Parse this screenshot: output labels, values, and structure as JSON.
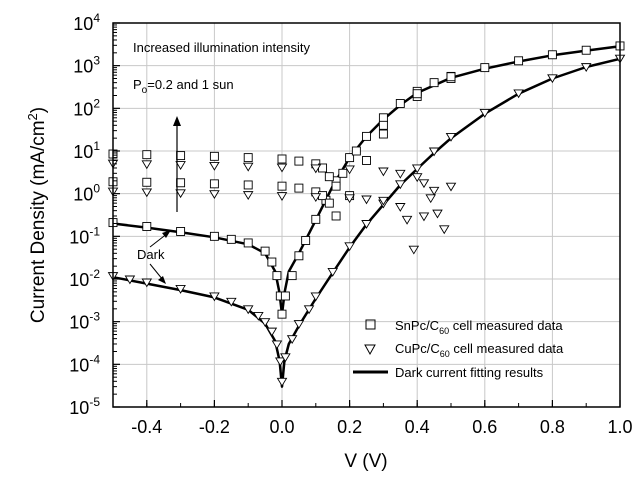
{
  "chart_data": {
    "type": "scatter",
    "x_axis": {
      "label": "V (V)",
      "min": -0.5,
      "max": 1.0,
      "scale": "linear",
      "ticks": [
        -0.4,
        -0.2,
        0.0,
        0.2,
        0.4,
        0.6,
        0.8,
        1.0
      ],
      "tick_labels": [
        "-0.4",
        "-0.2",
        "0.0",
        "0.2",
        "0.4",
        "0.6",
        "0.8",
        "1.0"
      ]
    },
    "y_axis": {
      "label": "Current Density (mA/cm²)",
      "label_main": "Current Density (mA/cm",
      "label_sup": "2",
      "label_end": ")",
      "min": 1e-05,
      "max": 10000.0,
      "scale": "log",
      "ticks": [
        10000.0,
        1000.0,
        100.0,
        10.0,
        1,
        0.1,
        0.01,
        0.001,
        0.0001,
        1e-05
      ],
      "tick_labels": [
        {
          "base": "10",
          "exp": "4"
        },
        {
          "base": "10",
          "exp": "3"
        },
        {
          "base": "10",
          "exp": "2"
        },
        {
          "base": "10",
          "exp": "1"
        },
        {
          "base": "10",
          "exp": "0"
        },
        {
          "base": "10",
          "exp": "-1"
        },
        {
          "base": "10",
          "exp": "-2"
        },
        {
          "base": "10",
          "exp": "-3"
        },
        {
          "base": "10",
          "exp": "-4"
        },
        {
          "base": "10",
          "exp": "-5"
        }
      ]
    },
    "grid": true,
    "legend_placement": "bottom-right",
    "legend": [
      {
        "marker": "square",
        "text_pre": "SnPc/C",
        "text_sub": "60",
        "text_post": " cell measured data"
      },
      {
        "marker": "triangle-down",
        "text_pre": "CuPc/C",
        "text_sub": "60",
        "text_post": " cell measured data"
      },
      {
        "marker": "line",
        "text_pre": "Dark current fitting results",
        "text_sub": "",
        "text_post": ""
      }
    ],
    "annotations": {
      "illumination": "Increased illumination intensity",
      "power_pre": "P",
      "power_sub": "o",
      "power_post": "=0.2 and 1 sun",
      "dark": "Dark"
    },
    "series": [
      {
        "name": "SnPc/C60 dark",
        "marker": "square",
        "points": [
          [
            -0.5,
            0.21
          ],
          [
            -0.4,
            0.17
          ],
          [
            -0.3,
            0.13
          ],
          [
            -0.2,
            0.1
          ],
          [
            -0.15,
            0.085
          ],
          [
            -0.1,
            0.07
          ],
          [
            -0.05,
            0.045
          ],
          [
            -0.03,
            0.025
          ],
          [
            -0.015,
            0.012
          ],
          [
            -0.005,
            0.004
          ],
          [
            0.0,
            0.0015
          ],
          [
            0.01,
            0.004
          ],
          [
            0.03,
            0.012
          ],
          [
            0.05,
            0.035
          ],
          [
            0.07,
            0.08
          ],
          [
            0.1,
            0.25
          ],
          [
            0.13,
            0.7
          ],
          [
            0.16,
            2
          ],
          [
            0.2,
            7
          ],
          [
            0.25,
            22
          ],
          [
            0.3,
            60
          ],
          [
            0.35,
            130
          ],
          [
            0.4,
            250
          ],
          [
            0.45,
            400
          ],
          [
            0.5,
            560
          ],
          [
            0.6,
            900
          ],
          [
            0.7,
            1300
          ],
          [
            0.8,
            1800
          ],
          [
            0.9,
            2300
          ],
          [
            1.0,
            2900
          ]
        ]
      },
      {
        "name": "SnPc/C60 0.2 sun",
        "marker": "square",
        "points": [
          [
            -0.5,
            1.9
          ],
          [
            -0.4,
            1.85
          ],
          [
            -0.3,
            1.8
          ],
          [
            -0.2,
            1.7
          ],
          [
            -0.1,
            1.6
          ],
          [
            0.0,
            1.5
          ],
          [
            0.05,
            1.35
          ],
          [
            0.1,
            1.1
          ],
          [
            0.12,
            0.9
          ],
          [
            0.14,
            0.6
          ],
          [
            0.16,
            0.3
          ],
          [
            0.2,
            0.9
          ],
          [
            0.25,
            6
          ],
          [
            0.3,
            25
          ],
          [
            0.4,
            190
          ],
          [
            0.5,
            500
          ]
        ]
      },
      {
        "name": "SnPc/C60 1 sun",
        "marker": "square",
        "points": [
          [
            -0.5,
            8.5
          ],
          [
            -0.4,
            8.2
          ],
          [
            -0.3,
            7.8
          ],
          [
            -0.2,
            7.5
          ],
          [
            -0.1,
            7
          ],
          [
            0.0,
            6.5
          ],
          [
            0.05,
            5.8
          ],
          [
            0.1,
            5
          ],
          [
            0.12,
            4
          ],
          [
            0.14,
            2.5
          ],
          [
            0.16,
            1.5
          ],
          [
            0.18,
            3
          ],
          [
            0.22,
            10
          ],
          [
            0.3,
            40
          ],
          [
            0.4,
            220
          ],
          [
            0.5,
            550
          ]
        ]
      },
      {
        "name": "CuPc/C60 dark",
        "marker": "triangle-down",
        "points": [
          [
            -0.5,
            0.012
          ],
          [
            -0.45,
            0.01
          ],
          [
            -0.4,
            0.0085
          ],
          [
            -0.3,
            0.006
          ],
          [
            -0.2,
            0.004
          ],
          [
            -0.15,
            0.003
          ],
          [
            -0.1,
            0.002
          ],
          [
            -0.07,
            0.0014
          ],
          [
            -0.05,
            0.001
          ],
          [
            -0.03,
            0.0006
          ],
          [
            -0.015,
            0.0003
          ],
          [
            -0.005,
            0.00012
          ],
          [
            0.0,
            4e-05
          ],
          [
            0.01,
            0.00015
          ],
          [
            0.03,
            0.0004
          ],
          [
            0.05,
            0.0009
          ],
          [
            0.08,
            0.002
          ],
          [
            0.1,
            0.004
          ],
          [
            0.15,
            0.015
          ],
          [
            0.2,
            0.06
          ],
          [
            0.25,
            0.2
          ],
          [
            0.3,
            0.6
          ],
          [
            0.35,
            1.7
          ],
          [
            0.4,
            4
          ],
          [
            0.45,
            10
          ],
          [
            0.5,
            22
          ],
          [
            0.6,
            80
          ],
          [
            0.7,
            230
          ],
          [
            0.8,
            520
          ],
          [
            0.9,
            950
          ],
          [
            1.0,
            1500
          ]
        ]
      },
      {
        "name": "CuPc/C60 0.2 sun",
        "marker": "triangle-down",
        "points": [
          [
            -0.5,
            1.15
          ],
          [
            -0.4,
            1.1
          ],
          [
            -0.3,
            1.05
          ],
          [
            -0.2,
            1.0
          ],
          [
            -0.1,
            0.95
          ],
          [
            0.0,
            0.9
          ],
          [
            0.1,
            0.85
          ],
          [
            0.2,
            0.8
          ],
          [
            0.25,
            0.75
          ],
          [
            0.3,
            0.7
          ],
          [
            0.35,
            0.5
          ],
          [
            0.37,
            0.25
          ],
          [
            0.39,
            0.05
          ],
          [
            0.42,
            0.3
          ],
          [
            0.45,
            1.2
          ]
        ]
      },
      {
        "name": "CuPc/C60 1 sun",
        "marker": "triangle-down",
        "points": [
          [
            -0.5,
            5.2
          ],
          [
            -0.4,
            5
          ],
          [
            -0.3,
            4.8
          ],
          [
            -0.2,
            4.6
          ],
          [
            -0.1,
            4.4
          ],
          [
            0.0,
            4.2
          ],
          [
            0.1,
            4
          ],
          [
            0.2,
            3.8
          ],
          [
            0.3,
            3.4
          ],
          [
            0.35,
            3
          ],
          [
            0.4,
            2.5
          ],
          [
            0.42,
            1.8
          ],
          [
            0.44,
            0.8
          ],
          [
            0.46,
            0.35
          ],
          [
            0.48,
            0.15
          ],
          [
            0.5,
            1.5
          ]
        ]
      }
    ],
    "fit_curves": [
      {
        "name": "SnPc/C60 dark fit",
        "points": [
          [
            -0.5,
            0.2
          ],
          [
            -0.4,
            0.16
          ],
          [
            -0.3,
            0.125
          ],
          [
            -0.2,
            0.095
          ],
          [
            -0.1,
            0.065
          ],
          [
            -0.05,
            0.04
          ],
          [
            -0.02,
            0.015
          ],
          [
            -0.008,
            0.005
          ],
          [
            0.0,
            0.0015
          ],
          [
            0.008,
            0.005
          ],
          [
            0.02,
            0.015
          ],
          [
            0.05,
            0.04
          ],
          [
            0.1,
            0.24
          ],
          [
            0.15,
            1.5
          ],
          [
            0.2,
            7
          ],
          [
            0.25,
            22
          ],
          [
            0.3,
            55
          ],
          [
            0.35,
            120
          ],
          [
            0.4,
            230
          ],
          [
            0.5,
            520
          ],
          [
            0.6,
            850
          ],
          [
            0.7,
            1250
          ],
          [
            0.8,
            1750
          ],
          [
            0.9,
            2250
          ],
          [
            1.0,
            2850
          ]
        ]
      },
      {
        "name": "CuPc/C60 dark fit",
        "points": [
          [
            -0.5,
            0.011
          ],
          [
            -0.4,
            0.0078
          ],
          [
            -0.3,
            0.0055
          ],
          [
            -0.2,
            0.0037
          ],
          [
            -0.1,
            0.0019
          ],
          [
            -0.05,
            0.0009
          ],
          [
            -0.02,
            0.00035
          ],
          [
            -0.007,
            0.00012
          ],
          [
            0.0,
            3e-05
          ],
          [
            0.007,
            0.00012
          ],
          [
            0.02,
            0.0003
          ],
          [
            0.05,
            0.0008
          ],
          [
            0.1,
            0.0035
          ],
          [
            0.15,
            0.014
          ],
          [
            0.2,
            0.055
          ],
          [
            0.25,
            0.19
          ],
          [
            0.3,
            0.55
          ],
          [
            0.35,
            1.6
          ],
          [
            0.4,
            3.8
          ],
          [
            0.45,
            9
          ],
          [
            0.5,
            20
          ],
          [
            0.6,
            75
          ],
          [
            0.7,
            220
          ],
          [
            0.8,
            500
          ],
          [
            0.9,
            930
          ],
          [
            1.0,
            1450
          ]
        ]
      }
    ]
  }
}
